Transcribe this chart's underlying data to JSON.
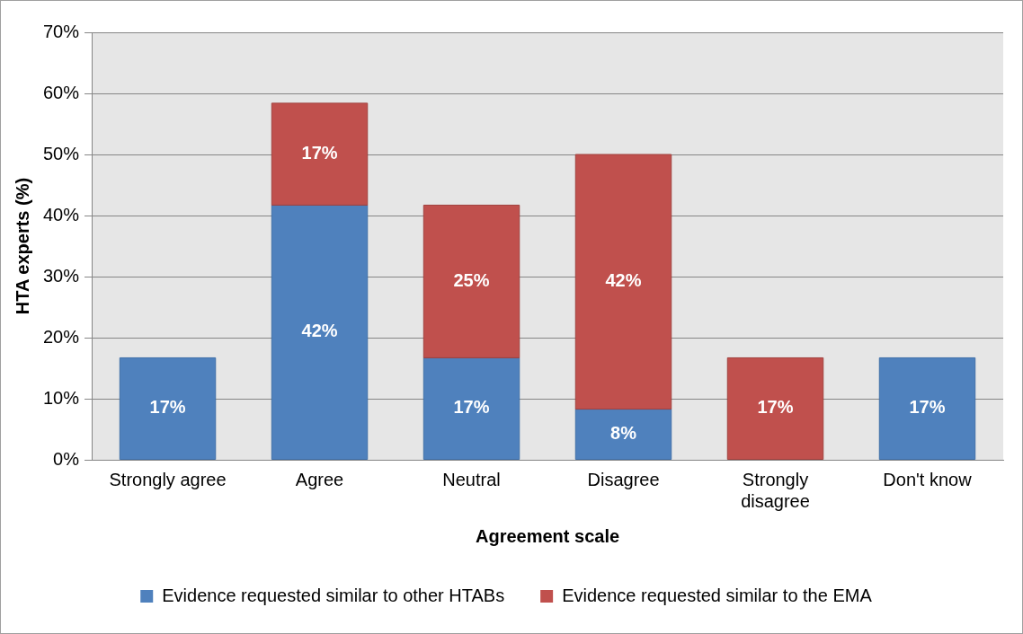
{
  "chart_data": {
    "type": "bar",
    "stacked": true,
    "xlabel": "Agreement scale",
    "ylabel": "HTA experts (%)",
    "categories": [
      "Strongly agree",
      "Agree",
      "Neutral",
      "Disagree",
      "Strongly disagree",
      "Don't know"
    ],
    "series": [
      {
        "name": "Evidence requested similar to other HTABs",
        "color": "#4f81bd",
        "values": [
          16.7,
          41.7,
          16.7,
          8.3,
          null,
          16.7
        ],
        "value_labels": [
          "17%",
          "42%",
          "17%",
          "8%",
          null,
          "17%"
        ]
      },
      {
        "name": "Evidence requested similar to the EMA",
        "color": "#c0504d",
        "values": [
          null,
          16.7,
          25,
          41.7,
          16.7,
          null
        ],
        "value_labels": [
          null,
          "17%",
          "25%",
          "42%",
          "17%",
          null
        ]
      }
    ],
    "ylim": [
      0,
      70
    ],
    "yticks": [
      {
        "value": 0,
        "label": "0%"
      },
      {
        "value": 10,
        "label": "10%"
      },
      {
        "value": 20,
        "label": "20%"
      },
      {
        "value": 30,
        "label": "30%"
      },
      {
        "value": 40,
        "label": "40%"
      },
      {
        "value": 50,
        "label": "50%"
      },
      {
        "value": 60,
        "label": "60%"
      },
      {
        "value": 70,
        "label": "70%"
      }
    ],
    "grid": "y",
    "legend": "bottom"
  }
}
